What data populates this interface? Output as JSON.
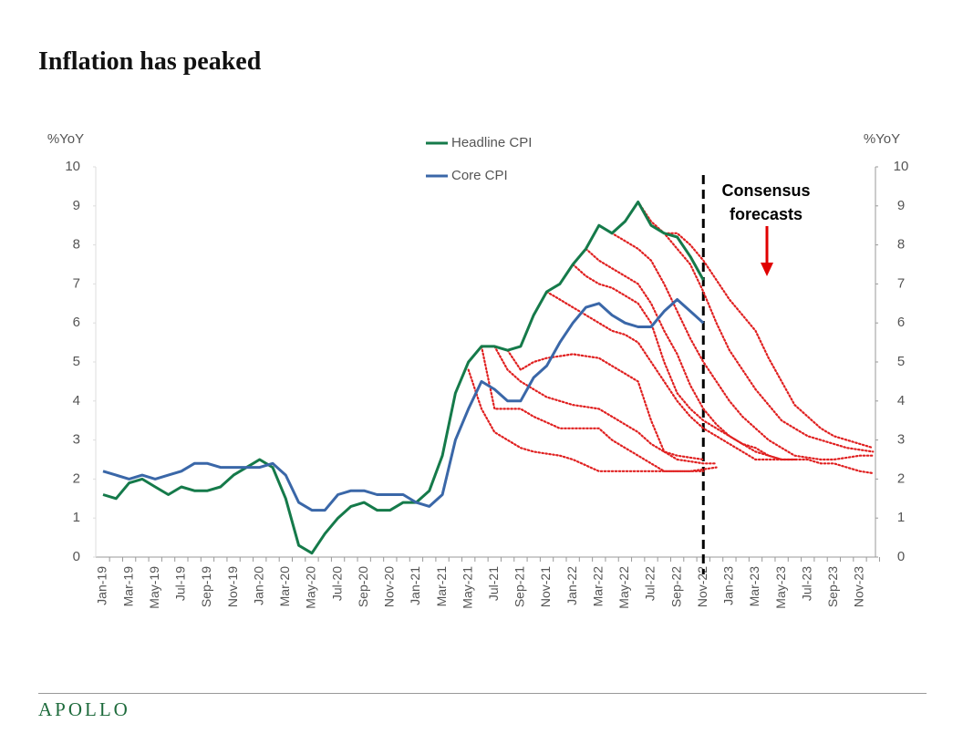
{
  "chart_data": {
    "type": "line",
    "title": "Inflation has peaked",
    "y_label": "%YoY",
    "y2_label": "%YoY",
    "annotation": "Consensus forecasts",
    "footer": "APOLLO",
    "categories": [
      "Jan-19",
      null,
      "Mar-19",
      null,
      "May-19",
      null,
      "Jul-19",
      null,
      "Sep-19",
      null,
      "Nov-19",
      null,
      "Jan-20",
      null,
      "Mar-20",
      null,
      "May-20",
      null,
      "Jul-20",
      null,
      "Sep-20",
      null,
      "Nov-20",
      null,
      "Jan-21",
      null,
      "Mar-21",
      null,
      "May-21",
      null,
      "Jul-21",
      null,
      "Sep-21",
      null,
      "Nov-21",
      null,
      "Jan-22",
      null,
      "Mar-22",
      null,
      "May-22",
      null,
      "Jul-22",
      null,
      "Sep-22",
      null,
      "Nov-22",
      null,
      "Jan-23",
      null,
      "Mar-23",
      null,
      "May-23",
      null,
      "Jul-23",
      null,
      "Sep-23",
      null,
      "Nov-23",
      null
    ],
    "ylim": [
      0,
      10
    ],
    "yticks": [
      0,
      1,
      2,
      3,
      4,
      5,
      6,
      7,
      8,
      9,
      10
    ],
    "y2lim": [
      0,
      10
    ],
    "y2ticks": [
      0,
      1,
      2,
      3,
      4,
      5,
      6,
      7,
      8,
      9,
      10
    ],
    "series": [
      {
        "name": "Headline CPI",
        "color": "#157a4a",
        "style": "solid",
        "values": [
          1.6,
          1.5,
          1.9,
          2.0,
          1.8,
          1.6,
          1.8,
          1.7,
          1.7,
          1.8,
          2.1,
          2.3,
          2.5,
          2.3,
          1.5,
          0.3,
          0.1,
          0.6,
          1.0,
          1.3,
          1.4,
          1.2,
          1.2,
          1.4,
          1.4,
          1.7,
          2.6,
          4.2,
          5.0,
          5.4,
          5.4,
          5.3,
          5.4,
          6.2,
          6.8,
          7.0,
          7.5,
          7.9,
          8.5,
          8.3,
          8.6,
          9.1,
          8.5,
          8.3,
          8.2,
          7.7,
          7.1,
          null,
          null,
          null,
          null,
          null,
          null,
          null,
          null,
          null,
          null,
          null,
          null,
          null
        ]
      },
      {
        "name": "Core CPI",
        "color": "#3a67a8",
        "style": "solid",
        "values": [
          2.2,
          2.1,
          2.0,
          2.1,
          2.0,
          2.1,
          2.2,
          2.4,
          2.4,
          2.3,
          2.3,
          2.3,
          2.3,
          2.4,
          2.1,
          1.4,
          1.2,
          1.2,
          1.6,
          1.7,
          1.7,
          1.6,
          1.6,
          1.6,
          1.4,
          1.3,
          1.6,
          3.0,
          3.8,
          4.5,
          4.3,
          4.0,
          4.0,
          4.6,
          4.9,
          5.5,
          6.0,
          6.4,
          6.5,
          6.2,
          6.0,
          5.9,
          5.9,
          6.3,
          6.6,
          6.3,
          6.0,
          null,
          null,
          null,
          null,
          null,
          null,
          null,
          null,
          null,
          null,
          null,
          null,
          null
        ]
      },
      {
        "color": "#e02020",
        "style": "dotted",
        "values": [
          null,
          null,
          null,
          null,
          null,
          null,
          null,
          null,
          null,
          null,
          null,
          null,
          null,
          null,
          null,
          null,
          null,
          null,
          null,
          null,
          null,
          null,
          null,
          null,
          null,
          null,
          null,
          null,
          4.8,
          3.8,
          3.2,
          3.0,
          2.8,
          2.7,
          2.65,
          2.6,
          2.5,
          2.35,
          2.2,
          2.2,
          2.2,
          2.2,
          2.2,
          2.2,
          2.2,
          2.2,
          2.2,
          null,
          null,
          null,
          null,
          null,
          null,
          null,
          null,
          null,
          null,
          null,
          null,
          null
        ]
      },
      {
        "color": "#e02020",
        "style": "dotted",
        "values": [
          null,
          null,
          null,
          null,
          null,
          null,
          null,
          null,
          null,
          null,
          null,
          null,
          null,
          null,
          null,
          null,
          null,
          null,
          null,
          null,
          null,
          null,
          null,
          null,
          null,
          null,
          null,
          null,
          null,
          5.4,
          3.8,
          3.8,
          3.8,
          3.6,
          3.45,
          3.3,
          3.3,
          3.3,
          3.3,
          3.0,
          2.8,
          2.6,
          2.4,
          2.2,
          2.2,
          2.2,
          2.25,
          2.3,
          null,
          null,
          null,
          null,
          null,
          null,
          null,
          null,
          null,
          null,
          null,
          null
        ]
      },
      {
        "color": "#e02020",
        "style": "dotted",
        "values": [
          null,
          null,
          null,
          null,
          null,
          null,
          null,
          null,
          null,
          null,
          null,
          null,
          null,
          null,
          null,
          null,
          null,
          null,
          null,
          null,
          null,
          null,
          null,
          null,
          null,
          null,
          null,
          null,
          null,
          null,
          5.4,
          4.8,
          4.5,
          4.3,
          4.1,
          4.0,
          3.9,
          3.85,
          3.8,
          3.6,
          3.4,
          3.2,
          2.9,
          2.7,
          2.6,
          2.55,
          2.5,
          null,
          null,
          null,
          null,
          null,
          null,
          null,
          null,
          null,
          null,
          null,
          null,
          null
        ]
      },
      {
        "color": "#e02020",
        "style": "dotted",
        "values": [
          null,
          null,
          null,
          null,
          null,
          null,
          null,
          null,
          null,
          null,
          null,
          null,
          null,
          null,
          null,
          null,
          null,
          null,
          null,
          null,
          null,
          null,
          null,
          null,
          null,
          null,
          null,
          null,
          null,
          null,
          null,
          5.3,
          4.8,
          5.0,
          5.1,
          5.15,
          5.2,
          5.15,
          5.1,
          4.9,
          4.7,
          4.5,
          3.5,
          2.7,
          2.5,
          2.45,
          2.4,
          2.4,
          null,
          null,
          null,
          null,
          null,
          null,
          null,
          null,
          null,
          null,
          null,
          null
        ]
      },
      {
        "color": "#e02020",
        "style": "dotted",
        "values": [
          null,
          null,
          null,
          null,
          null,
          null,
          null,
          null,
          null,
          null,
          null,
          null,
          null,
          null,
          null,
          null,
          null,
          null,
          null,
          null,
          null,
          null,
          null,
          null,
          null,
          null,
          null,
          null,
          null,
          null,
          null,
          null,
          null,
          null,
          6.8,
          6.6,
          6.4,
          6.2,
          6.0,
          5.8,
          5.7,
          5.5,
          5.0,
          4.5,
          4.0,
          3.6,
          3.3,
          3.1,
          2.9,
          2.7,
          2.5,
          2.5,
          2.5,
          null,
          null,
          null,
          null,
          null,
          null,
          null
        ]
      },
      {
        "color": "#e02020",
        "style": "dotted",
        "values": [
          null,
          null,
          null,
          null,
          null,
          null,
          null,
          null,
          null,
          null,
          null,
          null,
          null,
          null,
          null,
          null,
          null,
          null,
          null,
          null,
          null,
          null,
          null,
          null,
          null,
          null,
          null,
          null,
          null,
          null,
          null,
          null,
          null,
          null,
          null,
          null,
          7.5,
          7.2,
          7.0,
          6.9,
          6.7,
          6.5,
          6.0,
          5.0,
          4.2,
          3.8,
          3.5,
          3.3,
          3.1,
          2.9,
          2.7,
          2.6,
          2.5,
          2.5,
          null,
          null,
          null,
          null,
          null,
          null
        ]
      },
      {
        "color": "#e02020",
        "style": "dotted",
        "values": [
          null,
          null,
          null,
          null,
          null,
          null,
          null,
          null,
          null,
          null,
          null,
          null,
          null,
          null,
          null,
          null,
          null,
          null,
          null,
          null,
          null,
          null,
          null,
          null,
          null,
          null,
          null,
          null,
          null,
          null,
          null,
          null,
          null,
          null,
          null,
          null,
          null,
          7.9,
          7.6,
          7.4,
          7.2,
          7.0,
          6.5,
          5.8,
          5.2,
          4.4,
          3.8,
          3.4,
          3.1,
          2.9,
          2.8,
          2.6,
          2.5,
          2.5,
          2.5,
          2.4,
          2.4,
          2.3,
          2.2,
          2.15
        ]
      },
      {
        "color": "#e02020",
        "style": "dotted",
        "values": [
          null,
          null,
          null,
          null,
          null,
          null,
          null,
          null,
          null,
          null,
          null,
          null,
          null,
          null,
          null,
          null,
          null,
          null,
          null,
          null,
          null,
          null,
          null,
          null,
          null,
          null,
          null,
          null,
          null,
          null,
          null,
          null,
          null,
          null,
          null,
          null,
          null,
          null,
          8.5,
          8.3,
          8.1,
          7.9,
          7.6,
          7.0,
          6.3,
          5.6,
          5.0,
          4.5,
          4.0,
          3.6,
          3.3,
          3.0,
          2.8,
          2.6,
          2.55,
          2.5,
          2.5,
          2.55,
          2.6,
          2.6
        ]
      },
      {
        "color": "#e02020",
        "style": "dotted",
        "values": [
          null,
          null,
          null,
          null,
          null,
          null,
          null,
          null,
          null,
          null,
          null,
          null,
          null,
          null,
          null,
          null,
          null,
          null,
          null,
          null,
          null,
          null,
          null,
          null,
          null,
          null,
          null,
          null,
          null,
          null,
          null,
          null,
          null,
          null,
          null,
          null,
          null,
          null,
          null,
          null,
          null,
          9.1,
          8.6,
          8.3,
          7.9,
          7.5,
          6.8,
          6.0,
          5.3,
          4.8,
          4.3,
          3.9,
          3.5,
          3.3,
          3.1,
          3.0,
          2.9,
          2.8,
          2.75,
          2.7
        ]
      },
      {
        "color": "#e02020",
        "style": "dotted",
        "values": [
          null,
          null,
          null,
          null,
          null,
          null,
          null,
          null,
          null,
          null,
          null,
          null,
          null,
          null,
          null,
          null,
          null,
          null,
          null,
          null,
          null,
          null,
          null,
          null,
          null,
          null,
          null,
          null,
          null,
          null,
          null,
          null,
          null,
          null,
          null,
          null,
          null,
          null,
          null,
          null,
          null,
          null,
          null,
          8.3,
          8.3,
          8.0,
          7.6,
          7.1,
          6.6,
          6.2,
          5.8,
          5.1,
          4.5,
          3.9,
          3.6,
          3.3,
          3.1,
          3.0,
          2.9,
          2.8
        ]
      }
    ]
  }
}
